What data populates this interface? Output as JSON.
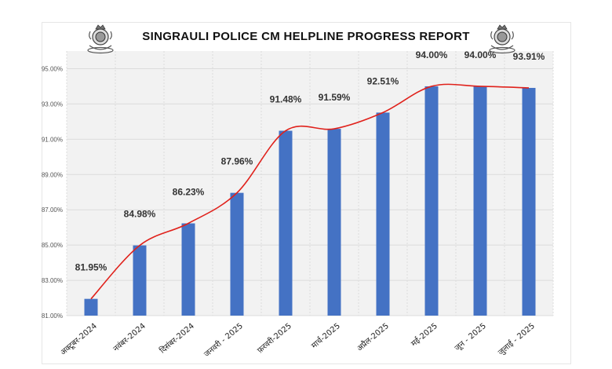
{
  "title": "SINGRAULI POLICE CM HELPLINE PROGRESS REPORT",
  "colors": {
    "bar": "#4472c4",
    "trend": "#e0211b",
    "grid": "#dcdcdc",
    "plot_bg": "#f2f2f2"
  },
  "chart_data": {
    "type": "bar",
    "title": "SINGRAULI POLICE CM HELPLINE PROGRESS REPORT",
    "categories": [
      "अक्टूबर-2024",
      "नवंबर-2024",
      "दिसंबर-2024",
      "जनवरी - 2025",
      "फ़रवरी-2025",
      "मार्च-2025",
      "अप्रैल-2025",
      "मई-2025",
      "जून - 2025",
      "जुलाई - 2025"
    ],
    "values": [
      81.95,
      84.98,
      86.23,
      87.96,
      91.48,
      91.59,
      92.51,
      94.0,
      94.0,
      93.91
    ],
    "data_labels": [
      "81.95%",
      "84.98%",
      "86.23%",
      "87.96%",
      "91.48%",
      "91.59%",
      "92.51%",
      "94.00%",
      "94.00%",
      "93.91%"
    ],
    "ylim": [
      81,
      96
    ],
    "yticks": [
      81,
      83,
      85,
      87,
      89,
      91,
      93,
      95
    ],
    "ytick_labels": [
      "81.00%",
      "83.00%",
      "85.00%",
      "87.00%",
      "89.00%",
      "91.00%",
      "93.00%",
      "95.00%"
    ],
    "trendline": "smoothed",
    "grid": true,
    "legend": "none"
  }
}
